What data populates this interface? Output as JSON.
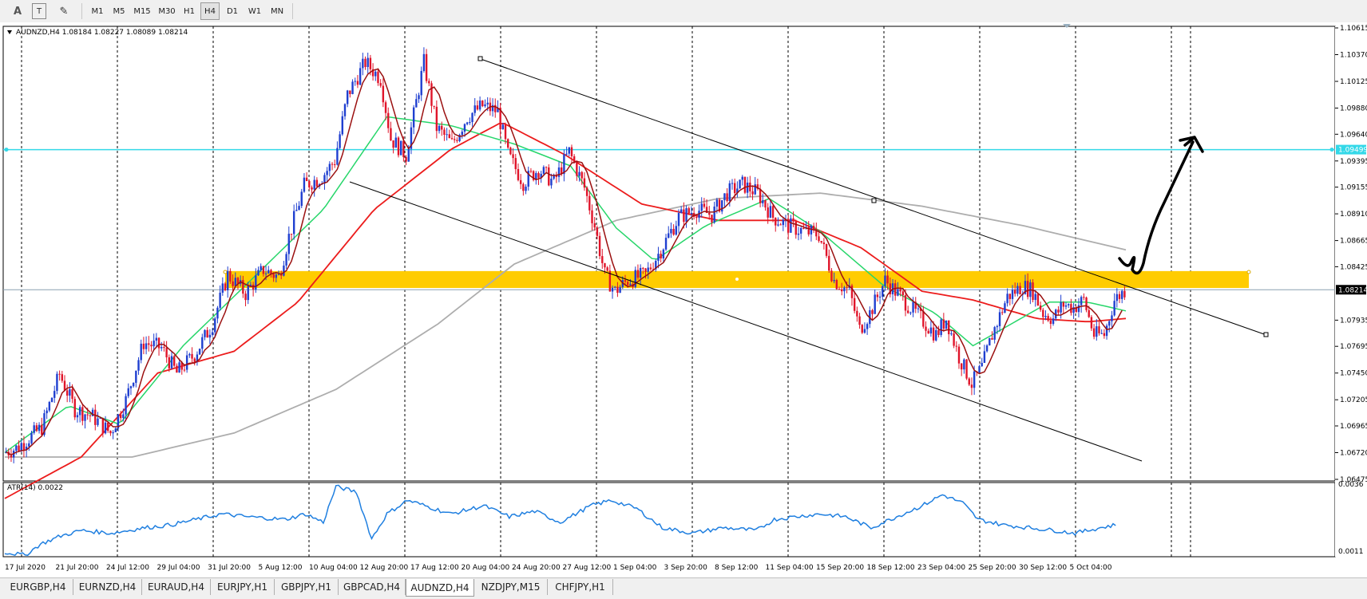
{
  "toolbar": {
    "tools": [
      "A",
      "T",
      "✎"
    ],
    "timeframes": [
      "M1",
      "M5",
      "M15",
      "M30",
      "H1",
      "H4",
      "D1",
      "W1",
      "MN"
    ],
    "active_timeframe": "H4"
  },
  "chart_header": {
    "symbol": "AUDNZD,H4",
    "ohlc": "1.08184 1.08227 1.08089 1.08214"
  },
  "current_price_label": "1.08214",
  "resistance_price_label": "1.09499",
  "indicator": {
    "label": "ATR(14) 0.0022",
    "scale_top": "0.0036",
    "scale_bottom": "0.0011"
  },
  "tabs": [
    "EURGBP,H4",
    "EURNZD,H4",
    "EURAUD,H4",
    "EURJPY,H1",
    "GBPJPY,H1",
    "GBPCAD,H4",
    "AUDNZD,H4",
    "NZDJPY,M15",
    "CHFJPY,H1"
  ],
  "active_tab": "AUDNZD,H4",
  "colors": {
    "bull": "#1f3fd0",
    "bear": "#e0142a",
    "ma_fast": "#9b1010",
    "ma_green": "#27d66a",
    "ma_red": "#ec1c1c",
    "ma_gray": "#adadad",
    "atr": "#1f7fe0",
    "zone": "#ffcc00",
    "resistance": "#33d8e8",
    "channel": "#000000",
    "grid": "#000000"
  },
  "chart_data": {
    "type": "candlestick",
    "symbol": "AUDNZD",
    "timeframe": "H4",
    "y_ticks": [
      "1.10615",
      "1.10370",
      "1.10125",
      "1.09880",
      "1.09640",
      "1.09395",
      "1.09155",
      "1.08910",
      "1.08665",
      "1.08425",
      "1.07935",
      "1.07695",
      "1.07450",
      "1.07205",
      "1.06965",
      "1.06720",
      "1.06475"
    ],
    "ylim": [
      1.06475,
      1.10615
    ],
    "x_ticks": [
      "17 Jul 2020",
      "21 Jul 20:00",
      "24 Jul 12:00",
      "29 Jul 04:00",
      "31 Jul 20:00",
      "5 Aug 12:00",
      "10 Aug 04:00",
      "12 Aug 20:00",
      "17 Aug 12:00",
      "20 Aug 04:00",
      "24 Aug 20:00",
      "27 Aug 12:00",
      "1 Sep 04:00",
      "3 Sep 20:00",
      "8 Sep 12:00",
      "11 Sep 04:00",
      "15 Sep 20:00",
      "18 Sep 12:00",
      "23 Sep 04:00",
      "25 Sep 20:00",
      "30 Sep 12:00",
      "5 Oct 04:00"
    ],
    "last_close": 1.08214,
    "resistance_level": 1.09499,
    "support_zone": [
      1.0823,
      1.08385
    ],
    "price_path": [
      [
        0,
        1.0672
      ],
      [
        5,
        1.0676
      ],
      [
        15,
        1.0695
      ],
      [
        22,
        1.0744
      ],
      [
        28,
        1.0712
      ],
      [
        35,
        1.0705
      ],
      [
        42,
        1.069
      ],
      [
        48,
        1.072
      ],
      [
        55,
        1.0773
      ],
      [
        62,
        1.0768
      ],
      [
        68,
        1.0745
      ],
      [
        75,
        1.0762
      ],
      [
        82,
        1.079
      ],
      [
        88,
        1.0835
      ],
      [
        95,
        1.0818
      ],
      [
        102,
        1.084
      ],
      [
        108,
        1.0833
      ],
      [
        112,
        1.087
      ],
      [
        118,
        1.0917
      ],
      [
        125,
        1.0925
      ],
      [
        130,
        1.094
      ],
      [
        135,
        1.1
      ],
      [
        142,
        1.103
      ],
      [
        148,
        1.1015
      ],
      [
        152,
        1.096
      ],
      [
        158,
        1.0945
      ],
      [
        165,
        1.103
      ],
      [
        170,
        1.097
      ],
      [
        176,
        1.0955
      ],
      [
        182,
        1.098
      ],
      [
        188,
        1.099
      ],
      [
        194,
        1.0985
      ],
      [
        198,
        1.0945
      ],
      [
        204,
        1.092
      ],
      [
        210,
        1.0932
      ],
      [
        216,
        1.092
      ],
      [
        222,
        1.0948
      ],
      [
        228,
        1.0915
      ],
      [
        232,
        1.088
      ],
      [
        236,
        1.0835
      ],
      [
        240,
        1.082
      ],
      [
        245,
        1.083
      ],
      [
        252,
        1.0835
      ],
      [
        258,
        1.0858
      ],
      [
        265,
        1.0888
      ],
      [
        272,
        1.0895
      ],
      [
        278,
        1.089
      ],
      [
        284,
        1.091
      ],
      [
        290,
        1.0918
      ],
      [
        296,
        1.091
      ],
      [
        302,
        1.0888
      ],
      [
        308,
        1.088
      ],
      [
        314,
        1.0875
      ],
      [
        320,
        1.0872
      ],
      [
        326,
        1.083
      ],
      [
        332,
        1.082
      ],
      [
        336,
        1.0785
      ],
      [
        340,
        1.08
      ],
      [
        346,
        1.083
      ],
      [
        352,
        1.0815
      ],
      [
        358,
        1.08
      ],
      [
        362,
        1.079
      ],
      [
        366,
        1.078
      ],
      [
        370,
        1.0795
      ],
      [
        375,
        1.076
      ],
      [
        380,
        1.0735
      ],
      [
        384,
        1.075
      ],
      [
        388,
        1.078
      ],
      [
        394,
        1.0815
      ],
      [
        400,
        1.0825
      ],
      [
        404,
        1.082
      ],
      [
        408,
        1.08
      ],
      [
        412,
        1.0795
      ],
      [
        416,
        1.0808
      ],
      [
        420,
        1.0805
      ],
      [
        424,
        1.0812
      ],
      [
        428,
        1.078
      ],
      [
        432,
        1.078
      ],
      [
        436,
        1.0812
      ],
      [
        440,
        1.0821
      ]
    ],
    "atr_path": [
      [
        0,
        0.0012
      ],
      [
        8,
        0.0011
      ],
      [
        14,
        0.0015
      ],
      [
        22,
        0.0018
      ],
      [
        30,
        0.002
      ],
      [
        42,
        0.0019
      ],
      [
        55,
        0.0021
      ],
      [
        65,
        0.0022
      ],
      [
        75,
        0.0024
      ],
      [
        85,
        0.0026
      ],
      [
        95,
        0.0025
      ],
      [
        110,
        0.0024
      ],
      [
        118,
        0.0026
      ],
      [
        125,
        0.0023
      ],
      [
        130,
        0.0036
      ],
      [
        138,
        0.0034
      ],
      [
        144,
        0.0017
      ],
      [
        150,
        0.0026
      ],
      [
        158,
        0.0031
      ],
      [
        165,
        0.0029
      ],
      [
        175,
        0.0026
      ],
      [
        188,
        0.0029
      ],
      [
        198,
        0.0025
      ],
      [
        208,
        0.0027
      ],
      [
        218,
        0.0023
      ],
      [
        230,
        0.0029
      ],
      [
        238,
        0.0031
      ],
      [
        248,
        0.0028
      ],
      [
        258,
        0.0021
      ],
      [
        270,
        0.0019
      ],
      [
        282,
        0.0021
      ],
      [
        295,
        0.002
      ],
      [
        302,
        0.0024
      ],
      [
        310,
        0.0025
      ],
      [
        320,
        0.0026
      ],
      [
        330,
        0.0025
      ],
      [
        340,
        0.0021
      ],
      [
        350,
        0.0025
      ],
      [
        360,
        0.0029
      ],
      [
        368,
        0.0033
      ],
      [
        376,
        0.003
      ],
      [
        382,
        0.0024
      ],
      [
        392,
        0.0022
      ],
      [
        402,
        0.0021
      ],
      [
        412,
        0.002
      ],
      [
        420,
        0.0019
      ],
      [
        430,
        0.0021
      ],
      [
        436,
        0.0022
      ]
    ],
    "atr_ylim": [
      0.0011,
      0.0036
    ],
    "ma_gray_path": [
      [
        0,
        1.0668
      ],
      [
        50,
        1.0668
      ],
      [
        90,
        1.069
      ],
      [
        130,
        1.073
      ],
      [
        170,
        1.079
      ],
      [
        200,
        1.0845
      ],
      [
        240,
        1.0885
      ],
      [
        280,
        1.0905
      ],
      [
        320,
        1.091
      ],
      [
        360,
        1.0898
      ],
      [
        400,
        1.088
      ],
      [
        440,
        1.0858
      ]
    ],
    "ma_red_path": [
      [
        0,
        1.063
      ],
      [
        30,
        1.0668
      ],
      [
        60,
        1.0745
      ],
      [
        90,
        1.0765
      ],
      [
        115,
        1.081
      ],
      [
        145,
        1.0895
      ],
      [
        175,
        1.095
      ],
      [
        195,
        1.0975
      ],
      [
        220,
        1.0945
      ],
      [
        250,
        1.09
      ],
      [
        280,
        1.0885
      ],
      [
        310,
        1.0885
      ],
      [
        336,
        1.086
      ],
      [
        360,
        1.082
      ],
      [
        380,
        1.0812
      ],
      [
        405,
        1.0795
      ],
      [
        425,
        1.0792
      ],
      [
        440,
        1.0795
      ]
    ],
    "ma_green_path": [
      [
        0,
        1.0672
      ],
      [
        25,
        1.0715
      ],
      [
        45,
        1.0698
      ],
      [
        70,
        1.077
      ],
      [
        100,
        1.0838
      ],
      [
        125,
        1.0895
      ],
      [
        150,
        1.098
      ],
      [
        175,
        1.0972
      ],
      [
        200,
        1.0955
      ],
      [
        222,
        1.0935
      ],
      [
        240,
        1.0878
      ],
      [
        255,
        1.0848
      ],
      [
        275,
        1.088
      ],
      [
        300,
        1.0905
      ],
      [
        320,
        1.0875
      ],
      [
        345,
        1.0825
      ],
      [
        365,
        1.08
      ],
      [
        380,
        1.077
      ],
      [
        395,
        1.079
      ],
      [
        410,
        1.081
      ],
      [
        425,
        1.081
      ],
      [
        440,
        1.0802
      ]
    ]
  }
}
